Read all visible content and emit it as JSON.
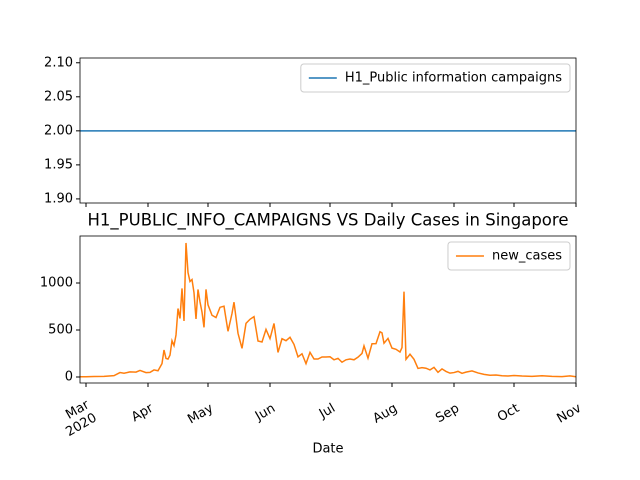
{
  "chart_data": [
    {
      "type": "line",
      "x": [
        "2020-02-27",
        "2020-11-01"
      ],
      "xlim": [
        "2020-02-27",
        "2020-11-01"
      ],
      "series": [
        {
          "name": "H1_Public information campaigns",
          "color": "#1f77b4",
          "values": [
            2,
            2
          ]
        }
      ],
      "ylim": [
        1.894,
        2.107
      ],
      "yticks": [
        {
          "value": 1.9,
          "label": "1.90"
        },
        {
          "value": 1.95,
          "label": "1.95"
        },
        {
          "value": 2.0,
          "label": "2.00"
        },
        {
          "value": 2.05,
          "label": "2.05"
        },
        {
          "value": 2.1,
          "label": "2.10"
        }
      ],
      "legend": "upper right"
    },
    {
      "type": "line",
      "title": "H1_PUBLIC_INFO_CAMPAIGNS VS Daily Cases in Singapore",
      "x_label": "Date",
      "x": [
        "2020-02-27",
        "2020-03-01",
        "2020-03-05",
        "2020-03-10",
        "2020-03-15",
        "2020-03-18",
        "2020-03-20",
        "2020-03-23",
        "2020-03-26",
        "2020-03-28",
        "2020-03-31",
        "2020-04-02",
        "2020-04-04",
        "2020-04-06",
        "2020-04-08",
        "2020-04-09",
        "2020-04-10",
        "2020-04-11",
        "2020-04-12",
        "2020-04-13",
        "2020-04-14",
        "2020-04-15",
        "2020-04-16",
        "2020-04-17",
        "2020-04-18",
        "2020-04-19",
        "2020-04-20",
        "2020-04-21",
        "2020-04-22",
        "2020-04-23",
        "2020-04-24",
        "2020-04-25",
        "2020-04-26",
        "2020-04-27",
        "2020-04-28",
        "2020-04-29",
        "2020-04-30",
        "2020-05-01",
        "2020-05-03",
        "2020-05-05",
        "2020-05-07",
        "2020-05-09",
        "2020-05-11",
        "2020-05-13",
        "2020-05-14",
        "2020-05-16",
        "2020-05-18",
        "2020-05-20",
        "2020-05-22",
        "2020-05-24",
        "2020-05-26",
        "2020-05-28",
        "2020-05-30",
        "2020-06-01",
        "2020-06-03",
        "2020-06-05",
        "2020-06-07",
        "2020-06-09",
        "2020-06-11",
        "2020-06-13",
        "2020-06-15",
        "2020-06-17",
        "2020-06-19",
        "2020-06-21",
        "2020-06-23",
        "2020-06-25",
        "2020-06-27",
        "2020-06-29",
        "2020-07-01",
        "2020-07-03",
        "2020-07-05",
        "2020-07-07",
        "2020-07-09",
        "2020-07-11",
        "2020-07-13",
        "2020-07-15",
        "2020-07-17",
        "2020-07-18",
        "2020-07-20",
        "2020-07-22",
        "2020-07-24",
        "2020-07-26",
        "2020-07-27",
        "2020-07-28",
        "2020-07-30",
        "2020-08-01",
        "2020-08-03",
        "2020-08-05",
        "2020-08-06",
        "2020-08-07",
        "2020-08-08",
        "2020-08-10",
        "2020-08-12",
        "2020-08-14",
        "2020-08-16",
        "2020-08-18",
        "2020-08-20",
        "2020-08-22",
        "2020-08-24",
        "2020-08-26",
        "2020-08-28",
        "2020-08-30",
        "2020-09-01",
        "2020-09-03",
        "2020-09-05",
        "2020-09-07",
        "2020-09-10",
        "2020-09-13",
        "2020-09-16",
        "2020-09-19",
        "2020-09-22",
        "2020-09-25",
        "2020-09-28",
        "2020-10-01",
        "2020-10-05",
        "2020-10-10",
        "2020-10-15",
        "2020-10-20",
        "2020-10-25",
        "2020-10-29",
        "2020-11-01"
      ],
      "xlim": [
        "2020-02-27",
        "2020-11-01"
      ],
      "xticks": [
        {
          "value": "2020-03-01",
          "label": "Mar\n2020"
        },
        {
          "value": "2020-04-01",
          "label": "Apr"
        },
        {
          "value": "2020-05-01",
          "label": "May"
        },
        {
          "value": "2020-06-01",
          "label": "Jun"
        },
        {
          "value": "2020-07-01",
          "label": "Jul"
        },
        {
          "value": "2020-08-01",
          "label": "Aug"
        },
        {
          "value": "2020-09-01",
          "label": "Sep"
        },
        {
          "value": "2020-10-01",
          "label": "Oct"
        },
        {
          "value": "2020-11-01",
          "label": "Nov"
        }
      ],
      "series": [
        {
          "name": "new_cases",
          "color": "#ff7f0e",
          "values": [
            3,
            2,
            5,
            6,
            14,
            47,
            40,
            54,
            52,
            70,
            47,
            49,
            75,
            66,
            142,
            287,
            198,
            191,
            233,
            386,
            334,
            447,
            728,
            623,
            942,
            596,
            1426,
            1111,
            1016,
            1037,
            897,
            618,
            931,
            799,
            690,
            528,
            932,
            768,
            657,
            632,
            741,
            753,
            486,
            675,
            796,
            465,
            305,
            570,
            614,
            642,
            383,
            373,
            506,
            408,
            569,
            261,
            407,
            386,
            422,
            347,
            214,
            247,
            142,
            262,
            191,
            191,
            213,
            213,
            215,
            183,
            198,
            157,
            183,
            191,
            183,
            211,
            250,
            331,
            200,
            354,
            355,
            481,
            469,
            359,
            410,
            307,
            295,
            266,
            313,
            908,
            188,
            242,
            188,
            91,
            99,
            93,
            75,
            102,
            50,
            86,
            59,
            41,
            47,
            60,
            39,
            52,
            65,
            43,
            28,
            18,
            21,
            13,
            11,
            16,
            10,
            6,
            13,
            6,
            4,
            12,
            3
          ]
        }
      ],
      "ylim": [
        -64,
        1500
      ],
      "yticks": [
        0,
        500,
        1000
      ],
      "legend": "upper right"
    }
  ]
}
